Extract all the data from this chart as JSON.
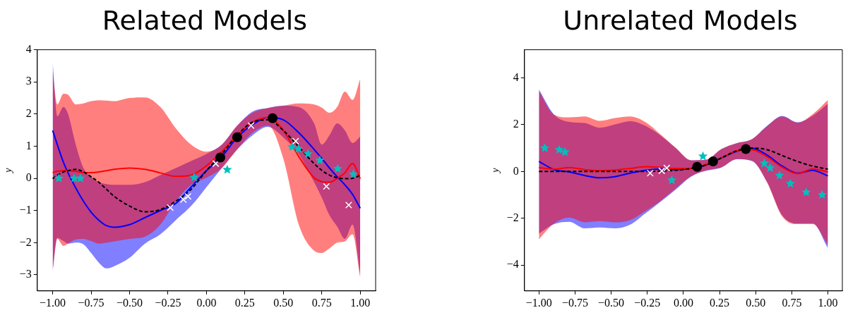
{
  "chart_data": [
    {
      "type": "line",
      "title": "Related Models",
      "ylabel": "y",
      "x": [
        -1,
        -0.97,
        -0.93,
        -0.9,
        -0.85,
        -0.8,
        -0.75,
        -0.7,
        -0.65,
        -0.6,
        -0.5,
        -0.4,
        -0.3,
        -0.2,
        -0.1,
        0,
        0.1,
        0.2,
        0.3,
        0.4,
        0.5,
        0.6,
        0.7,
        0.75,
        0.8,
        0.85,
        0.9,
        0.95,
        1
      ],
      "xlim": [
        -1.1,
        1.1
      ],
      "ylim": [
        -3.5,
        4
      ],
      "xticks": [
        {
          "value": -1,
          "label": "−1.00"
        },
        {
          "value": -0.75,
          "label": "−0.75"
        },
        {
          "value": -0.5,
          "label": "−0.50"
        },
        {
          "value": -0.25,
          "label": "−0.25"
        },
        {
          "value": 0,
          "label": "0.00"
        },
        {
          "value": 0.25,
          "label": "0.25"
        },
        {
          "value": 0.5,
          "label": "0.50"
        },
        {
          "value": 0.75,
          "label": "0.75"
        },
        {
          "value": 1,
          "label": "1.00"
        }
      ],
      "yticks": [
        {
          "value": -3,
          "label": "−3"
        },
        {
          "value": -2,
          "label": "−2"
        },
        {
          "value": -1,
          "label": "−1"
        },
        0,
        1,
        2,
        3,
        4
      ],
      "series": [
        {
          "color": "#0000ff",
          "values": [
            1.49,
            1.05,
            0.5,
            0.17,
            -0.3,
            -0.71,
            -1.05,
            -1.3,
            -1.47,
            -1.52,
            -1.44,
            -1.22,
            -1.0,
            -0.78,
            -0.27,
            0.24,
            0.68,
            1.27,
            1.67,
            1.89,
            1.82,
            1.42,
            0.9,
            0.62,
            0.32,
            0.05,
            -0.2,
            -0.5,
            -0.93
          ],
          "lower": [
            -2.9,
            -1.85,
            -1.95,
            -2.03,
            -2.0,
            -2.05,
            -2.32,
            -2.62,
            -2.8,
            -2.73,
            -2.47,
            -2.03,
            -1.74,
            -1.3,
            -0.86,
            -0.27,
            0.32,
            0.9,
            1.34,
            1.6,
            1.27,
            0.76,
            -0.12,
            -0.6,
            -1.15,
            -1.5,
            -1.88,
            -1.44,
            -3.0
          ],
          "upper": [
            3.6,
            1.93,
            2.22,
            2.0,
            1.05,
            0.32,
            0.05,
            -0.12,
            -0.18,
            -0.2,
            -0.2,
            -0.12,
            0.1,
            0.32,
            0.54,
            0.76,
            1.05,
            1.64,
            2.08,
            2.19,
            2.26,
            2.22,
            1.71,
            1.05,
            1.34,
            1.71,
            1.49,
            1.1,
            1.3
          ]
        },
        {
          "color": "#ff0000",
          "values": [
            0.18,
            0.22,
            0.24,
            0.24,
            0.22,
            0.18,
            0.18,
            0.2,
            0.24,
            0.28,
            0.32,
            0.28,
            0.17,
            0.06,
            0.1,
            0.39,
            0.83,
            1.34,
            1.75,
            1.89,
            1.49,
            0.68,
            0.02,
            -0.1,
            -0.12,
            0.0,
            0.17,
            0.46,
            -0.01
          ],
          "lower": [
            -2.9,
            -1.88,
            -2.1,
            -2.03,
            -1.9,
            -1.88,
            -1.95,
            -2.03,
            -2.0,
            -1.96,
            -1.88,
            -1.81,
            -1.44,
            -0.71,
            -0.2,
            0.02,
            0.32,
            0.9,
            1.42,
            1.64,
            0.61,
            -1.44,
            -2.25,
            -2.32,
            -2.18,
            -2.0,
            -1.96,
            -1.74,
            -3.1
          ],
          "upper": [
            3.3,
            2.3,
            2.63,
            2.6,
            2.3,
            2.33,
            2.4,
            2.43,
            2.42,
            2.4,
            2.5,
            2.52,
            2.22,
            1.56,
            1.05,
            0.83,
            1.05,
            1.64,
            2.04,
            2.19,
            2.26,
            2.33,
            2.3,
            2.2,
            2.04,
            2.22,
            2.7,
            2.44,
            3.1
          ]
        },
        {
          "color": "#000000",
          "line_style": "dashed",
          "values": [
            -0.01,
            0.1,
            0.2,
            0.24,
            0.28,
            0.2,
            0.05,
            -0.12,
            -0.34,
            -0.56,
            -0.86,
            -1.04,
            -0.97,
            -0.71,
            -0.34,
            0.24,
            0.76,
            1.34,
            1.75,
            1.82,
            1.49,
            0.98,
            0.46,
            0.25,
            0.1,
            0.02,
            -0.01,
            0.0,
            0.1
          ]
        },
        {
          "type": "scatter",
          "marker": "cross",
          "color": "#ffffff",
          "x": [
            -0.235,
            -0.15,
            -0.12,
            0.06,
            0.29,
            0.58,
            0.78,
            0.925
          ],
          "values": [
            -0.91,
            -0.66,
            -0.56,
            0.46,
            1.64,
            1.16,
            -0.25,
            -0.83
          ]
        },
        {
          "type": "scatter",
          "marker": "star",
          "color": "#00bfbf",
          "x": [
            -0.96,
            -0.86,
            -0.82,
            -0.08,
            0.135,
            0.556,
            0.598,
            0.66,
            0.737,
            0.853,
            0.955
          ],
          "values": [
            0.0,
            0.0,
            0.0,
            0.03,
            0.27,
            0.98,
            0.92,
            0.76,
            0.56,
            0.3,
            0.13
          ]
        },
        {
          "type": "scatter",
          "marker": "circle",
          "color": "#000000",
          "x": [
            0.09,
            0.2,
            0.43
          ],
          "values": [
            0.65,
            1.28,
            1.87
          ]
        }
      ]
    },
    {
      "type": "line",
      "title": "Unrelated Models",
      "ylabel": "y",
      "x": [
        -1,
        -0.895,
        -0.789,
        -0.684,
        -0.579,
        -0.474,
        -0.368,
        -0.263,
        -0.158,
        -0.053,
        0.053,
        0.158,
        0.263,
        0.368,
        0.474,
        0.579,
        0.684,
        0.789,
        0.895,
        1
      ],
      "xlim": [
        -1.1,
        1.1
      ],
      "ylim": [
        -5.1,
        5.2
      ],
      "xticks": [
        {
          "value": -1,
          "label": "−1.00"
        },
        {
          "value": -0.75,
          "label": "−0.75"
        },
        {
          "value": -0.5,
          "label": "−0.50"
        },
        {
          "value": -0.25,
          "label": "−0.25"
        },
        {
          "value": 0,
          "label": "0.00"
        },
        {
          "value": 0.25,
          "label": "0.25"
        },
        {
          "value": 0.5,
          "label": "0.50"
        },
        {
          "value": 0.75,
          "label": "0.75"
        },
        {
          "value": 1,
          "label": "1.00"
        }
      ],
      "yticks": [
        {
          "value": -4,
          "label": "−4"
        },
        {
          "value": -2,
          "label": "−2"
        },
        0,
        2,
        4
      ],
      "series": [
        {
          "color": "#0000ff",
          "values": [
            0.43,
            0.08,
            -0.02,
            -0.17,
            -0.27,
            -0.22,
            -0.07,
            0.05,
            0.11,
            0.08,
            0.13,
            0.28,
            0.58,
            0.86,
            1.0,
            0.7,
            0.23,
            -0.07,
            0.05,
            -0.19
          ],
          "lower": [
            -2.65,
            -2.25,
            -2.15,
            -2.43,
            -2.39,
            -2.43,
            -2.27,
            -1.79,
            -1.29,
            -0.77,
            -0.22,
            0.03,
            0.17,
            0.52,
            0.45,
            -0.45,
            -1.87,
            -2.22,
            -2.22,
            -3.27
          ],
          "upper": [
            3.5,
            2.43,
            2.12,
            2.07,
            1.87,
            2.01,
            2.15,
            1.95,
            1.53,
            1.0,
            0.48,
            0.5,
            0.96,
            1.21,
            1.38,
            1.95,
            2.37,
            2.1,
            2.38,
            2.9
          ]
        },
        {
          "color": "#ff0000",
          "values": [
            0.16,
            0.1,
            0.17,
            0.08,
            0.03,
            0.06,
            0.13,
            0.21,
            0.18,
            0.13,
            0.13,
            0.31,
            0.58,
            0.88,
            0.93,
            0.63,
            0.18,
            -0.09,
            0.11,
            -0.02
          ],
          "lower": [
            -2.89,
            -2.22,
            -1.97,
            -2.17,
            -2.12,
            -2.17,
            -2.07,
            -1.69,
            -1.25,
            -0.72,
            -0.2,
            0.05,
            0.18,
            0.53,
            0.46,
            -0.47,
            -1.92,
            -2.25,
            -2.25,
            -3.12
          ],
          "upper": [
            3.43,
            2.43,
            2.31,
            2.35,
            2.16,
            2.28,
            2.35,
            2.11,
            1.58,
            1.01,
            0.48,
            0.51,
            0.96,
            1.21,
            1.38,
            1.93,
            2.35,
            2.08,
            2.45,
            3.06
          ]
        },
        {
          "color": "#000000",
          "line_style": "dashed",
          "values": [
            0,
            0,
            0,
            0,
            0,
            0,
            0,
            0,
            0.02,
            0.05,
            0.13,
            0.28,
            0.58,
            0.88,
            1.0,
            0.93,
            0.68,
            0.43,
            0.23,
            0.1
          ]
        },
        {
          "type": "scatter",
          "marker": "cross",
          "color": "#ffffff",
          "x": [
            -0.23,
            -0.15,
            -0.115
          ],
          "values": [
            -0.07,
            0.03,
            0.15
          ]
        },
        {
          "type": "scatter",
          "marker": "star",
          "color": "#00bfbf",
          "x": [
            -0.96,
            -0.86,
            -0.82,
            -0.08,
            0.135,
            0.56,
            0.6,
            0.665,
            0.74,
            0.85,
            0.96
          ],
          "values": [
            1.0,
            0.93,
            0.83,
            -0.37,
            0.65,
            0.35,
            0.15,
            -0.17,
            -0.52,
            -0.89,
            -1.0
          ]
        },
        {
          "type": "scatter",
          "marker": "circle",
          "color": "#000000",
          "x": [
            0.095,
            0.205,
            0.432
          ],
          "values": [
            0.2,
            0.43,
            0.96
          ]
        }
      ]
    }
  ]
}
